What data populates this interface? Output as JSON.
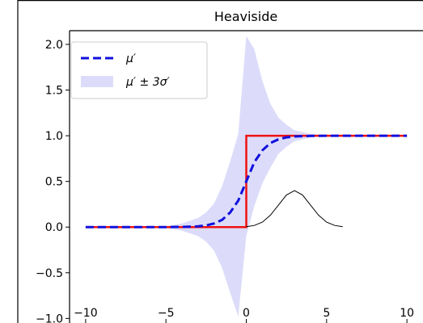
{
  "chart_data": {
    "type": "line",
    "title": "Heaviside",
    "xlabel": "",
    "ylabel": "",
    "xlim": [
      -11,
      11
    ],
    "ylim": [
      -1.05,
      2.15
    ],
    "xticks": [
      -10,
      -5,
      0,
      5,
      10
    ],
    "yticks": [
      -1.0,
      -0.5,
      0.0,
      0.5,
      1.0,
      1.5,
      2.0
    ],
    "xtick_labels": [
      "−10",
      "−5",
      "0",
      "5",
      "10"
    ],
    "ytick_labels": [
      "−1.0",
      "−0.5",
      "0.0",
      "0.5",
      "1.0",
      "1.5",
      "2.0"
    ],
    "grid": false,
    "legend_position": "top-left",
    "legend": [
      {
        "label": "μ′",
        "style": "dashed",
        "color": "#1010dd"
      },
      {
        "label": "μ′ ± 3σ′",
        "style": "band",
        "color": "#dcdcfa"
      }
    ],
    "series": [
      {
        "name": "μ′",
        "style": "dashed",
        "color": "#1010dd",
        "x": [
          -10,
          -8,
          -6,
          -5,
          -4,
          -3,
          -2.5,
          -2,
          -1.5,
          -1,
          -0.5,
          0,
          0.5,
          1,
          1.5,
          2,
          2.5,
          3,
          4,
          5,
          6,
          8,
          10
        ],
        "y": [
          0,
          0,
          0,
          0,
          0.002,
          0.008,
          0.018,
          0.04,
          0.08,
          0.16,
          0.29,
          0.5,
          0.71,
          0.84,
          0.92,
          0.96,
          0.982,
          0.992,
          0.998,
          1.0,
          1.0,
          1.0,
          1.0
        ]
      },
      {
        "name": "",
        "style": "solid",
        "color": "#ee1111",
        "x": [
          -10,
          0,
          0,
          10
        ],
        "y": [
          0,
          0,
          1,
          1
        ]
      },
      {
        "name": "",
        "style": "thin",
        "color": "#000000",
        "x": [
          0,
          0.5,
          1,
          1.5,
          2,
          2.5,
          3,
          3.5,
          4,
          4.5,
          5,
          5.5,
          6
        ],
        "y": [
          0.004,
          0.018,
          0.054,
          0.13,
          0.24,
          0.352,
          0.399,
          0.352,
          0.24,
          0.13,
          0.054,
          0.018,
          0.004
        ]
      }
    ],
    "band": {
      "name": "μ′ ± 3σ′",
      "color": "#dcdcfa",
      "x": [
        -10,
        -8,
        -6,
        -5,
        -4,
        -3,
        -2.5,
        -2,
        -1.5,
        -1,
        -0.5,
        0,
        0.5,
        1,
        1.5,
        2,
        2.5,
        3,
        4,
        5,
        6,
        8,
        10
      ],
      "lower": [
        0,
        0,
        -0.005,
        -0.01,
        -0.04,
        -0.1,
        -0.16,
        -0.26,
        -0.45,
        -0.72,
        -0.98,
        -0.1,
        0.23,
        0.48,
        0.65,
        0.8,
        0.88,
        0.94,
        0.98,
        0.995,
        1.0,
        1.0,
        1.0
      ],
      "upper": [
        0,
        0,
        0.005,
        0.01,
        0.04,
        0.1,
        0.16,
        0.26,
        0.45,
        0.72,
        1.02,
        2.09,
        1.95,
        1.6,
        1.35,
        1.2,
        1.12,
        1.06,
        1.02,
        1.005,
        1.0,
        1.0,
        1.0
      ]
    }
  }
}
